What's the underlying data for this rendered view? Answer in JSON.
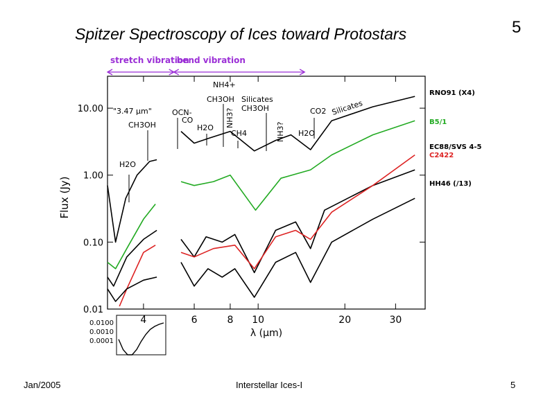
{
  "slide": {
    "title": "Spitzer Spectroscopy of Ices toward Protostars",
    "number_top": "5",
    "footer_left": "Jan/2005",
    "footer_center": "Interstellar Ices-I",
    "footer_right": "5"
  },
  "chart_data": {
    "type": "line",
    "title": "",
    "xlabel": "λ (μm)",
    "ylabel": "Flux (Jy)",
    "xscale": "log",
    "yscale": "log",
    "xlim": [
      3.0,
      38
    ],
    "ylim": [
      0.01,
      30
    ],
    "x_ticks": [
      4,
      6,
      8,
      10,
      20,
      30
    ],
    "x_tick_labels": [
      "4",
      "6",
      "8",
      "10",
      "20",
      "30"
    ],
    "y_ticks": [
      0.01,
      0.1,
      1,
      10
    ],
    "y_tick_labels": [
      "0.01",
      "0.10",
      "1.00",
      "10.00"
    ],
    "ranges": [
      {
        "label": "stretch vibration",
        "from": 3.0,
        "to": 5.1,
        "color": "#9b2fd6"
      },
      {
        "label": "bend vibration",
        "from": 5.1,
        "to": 14.5,
        "color": "#9b2fd6"
      }
    ],
    "annotations": [
      {
        "text": "\"3.47 μm\"",
        "x": 3.47
      },
      {
        "text": "CH3OH",
        "x": 3.53
      },
      {
        "text": "H2O",
        "x": 3.05
      },
      {
        "text": "OCN-",
        "x": 4.62
      },
      {
        "text": "CO",
        "x": 4.67
      },
      {
        "text": "H2O",
        "x": 6.0
      },
      {
        "text": "NH4+",
        "x": 6.85
      },
      {
        "text": "CH3OH",
        "x": 6.85
      },
      {
        "text": "CH4",
        "x": 7.7
      },
      {
        "text": "Silicates",
        "x": 9.7
      },
      {
        "text": "CH3OH",
        "x": 9.7
      },
      {
        "text": "NH3?",
        "x": 9.0
      },
      {
        "text": "NH3?",
        "x": 9.0
      },
      {
        "text": "H2O",
        "x": 13.0
      },
      {
        "text": "CO2",
        "x": 15.2
      },
      {
        "text": "Silicates",
        "x": 18.0
      }
    ],
    "series": [
      {
        "name": "RNO91 (X4)",
        "color": "#000000",
        "segments": [
          [
            [
              3.0,
              0.7
            ],
            [
              3.2,
              0.1
            ],
            [
              3.47,
              0.45
            ],
            [
              3.8,
              1.0
            ],
            [
              4.2,
              1.6
            ],
            [
              4.45,
              1.7
            ]
          ],
          [
            [
              5.4,
              4.5
            ],
            [
              6.0,
              3.0
            ],
            [
              6.8,
              3.6
            ],
            [
              8.0,
              4.5
            ],
            [
              9.7,
              2.3
            ],
            [
              11.5,
              3.3
            ],
            [
              13.0,
              4.0
            ],
            [
              15.2,
              2.4
            ],
            [
              18.0,
              6.5
            ],
            [
              25.0,
              10.5
            ],
            [
              35.0,
              15.0
            ]
          ]
        ]
      },
      {
        "name": "B5/1",
        "color": "#22aa22",
        "segments": [
          [
            [
              3.0,
              0.05
            ],
            [
              3.2,
              0.04
            ],
            [
              3.5,
              0.08
            ],
            [
              4.0,
              0.22
            ],
            [
              4.4,
              0.37
            ]
          ],
          [
            [
              5.4,
              0.8
            ],
            [
              6.0,
              0.7
            ],
            [
              7.0,
              0.8
            ],
            [
              8.0,
              1.0
            ],
            [
              9.8,
              0.3
            ],
            [
              12.0,
              0.9
            ],
            [
              15.2,
              1.2
            ],
            [
              18.0,
              2.0
            ],
            [
              25.0,
              4.0
            ],
            [
              35.0,
              6.5
            ]
          ]
        ]
      },
      {
        "name": "EC88/SVS 4-5",
        "color": "#000000",
        "segments": [
          [
            [
              3.0,
              0.03
            ],
            [
              3.15,
              0.022
            ],
            [
              3.5,
              0.06
            ],
            [
              4.0,
              0.11
            ],
            [
              4.45,
              0.15
            ]
          ],
          [
            [
              5.4,
              0.11
            ],
            [
              6.0,
              0.06
            ],
            [
              6.6,
              0.12
            ],
            [
              7.5,
              0.1
            ],
            [
              8.3,
              0.13
            ],
            [
              9.7,
              0.035
            ],
            [
              11.5,
              0.15
            ],
            [
              13.5,
              0.2
            ],
            [
              15.2,
              0.08
            ],
            [
              17.0,
              0.3
            ],
            [
              25.0,
              0.7
            ],
            [
              35.0,
              1.2
            ]
          ]
        ]
      },
      {
        "name": "C2422",
        "color": "#dd2222",
        "segments": [
          [
            [
              3.3,
              0.011
            ],
            [
              3.5,
              0.02
            ],
            [
              4.0,
              0.07
            ],
            [
              4.4,
              0.09
            ]
          ],
          [
            [
              5.4,
              0.07
            ],
            [
              6.0,
              0.06
            ],
            [
              7.0,
              0.08
            ],
            [
              8.3,
              0.09
            ],
            [
              9.7,
              0.04
            ],
            [
              11.5,
              0.12
            ],
            [
              13.5,
              0.15
            ],
            [
              15.2,
              0.11
            ],
            [
              18.0,
              0.28
            ],
            [
              25.0,
              0.7
            ],
            [
              35.0,
              2.0
            ]
          ]
        ]
      },
      {
        "name": "HH46 (/13)",
        "color": "#000000",
        "segments": [
          [
            [
              3.0,
              0.02
            ],
            [
              3.2,
              0.013
            ],
            [
              3.5,
              0.02
            ],
            [
              4.0,
              0.027
            ],
            [
              4.45,
              0.03
            ]
          ],
          [
            [
              5.4,
              0.05
            ],
            [
              6.0,
              0.022
            ],
            [
              6.7,
              0.04
            ],
            [
              7.5,
              0.03
            ],
            [
              8.3,
              0.04
            ],
            [
              9.7,
              0.015
            ],
            [
              11.5,
              0.05
            ],
            [
              13.5,
              0.07
            ],
            [
              15.2,
              0.025
            ],
            [
              18.0,
              0.1
            ],
            [
              25.0,
              0.22
            ],
            [
              35.0,
              0.45
            ]
          ]
        ]
      }
    ],
    "inset": {
      "y_tick_labels": [
        "0.0100",
        "0.0010",
        "0.0001"
      ],
      "values": [
        0.0008,
        0.0002,
        0.0001,
        0.0001,
        0.0002,
        0.0006,
        0.0015,
        0.003,
        0.0045,
        0.006,
        0.0072
      ]
    }
  }
}
